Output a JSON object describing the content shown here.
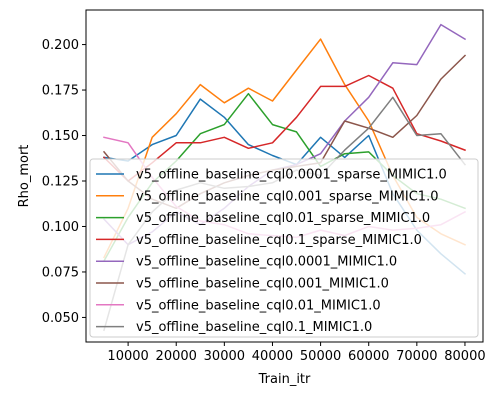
{
  "chart_data": {
    "type": "line",
    "title": "",
    "xlabel": "Train_itr",
    "ylabel": "Rho_mort",
    "xlim": [
      1250,
      83750
    ],
    "ylim": [
      0.0365,
      0.219
    ],
    "xticks": [
      10000,
      20000,
      30000,
      40000,
      50000,
      60000,
      70000,
      80000
    ],
    "xtick_labels": [
      "10000",
      "20000",
      "30000",
      "40000",
      "50000",
      "60000",
      "70000",
      "80000"
    ],
    "yticks": [
      0.05,
      0.075,
      0.1,
      0.125,
      0.15,
      0.175,
      0.2
    ],
    "ytick_labels": [
      "0.050",
      "0.075",
      "0.100",
      "0.125",
      "0.150",
      "0.175",
      "0.200"
    ],
    "grid": false,
    "legend_position": "lower-right",
    "x": [
      5000,
      10000,
      15000,
      20000,
      25000,
      30000,
      35000,
      40000,
      45000,
      50000,
      55000,
      60000,
      65000,
      70000,
      75000,
      80000
    ],
    "series": [
      {
        "name": "v5_offline_baseline_cql0.0001_sparse_MIMIC1.0",
        "color": "#1f77b4",
        "values": [
          0.138,
          0.136,
          0.145,
          0.15,
          0.17,
          0.16,
          0.145,
          0.139,
          0.134,
          0.149,
          0.138,
          0.15,
          0.118,
          0.098,
          0.085,
          0.074
        ]
      },
      {
        "name": "v5_offline_baseline_cql0.001_sparse_MIMIC1.0",
        "color": "#ff7f0e",
        "values": [
          0.083,
          0.11,
          0.149,
          0.162,
          0.178,
          0.168,
          0.176,
          0.169,
          0.186,
          0.203,
          0.178,
          0.158,
          0.128,
          0.105,
          0.096,
          0.09
        ]
      },
      {
        "name": "v5_offline_baseline_cql0.01_sparse_MIMIC1.0",
        "color": "#2ca02c",
        "values": [
          0.081,
          0.105,
          0.124,
          0.136,
          0.151,
          0.156,
          0.173,
          0.156,
          0.152,
          0.133,
          0.14,
          0.141,
          0.128,
          0.118,
          0.115,
          0.11
        ]
      },
      {
        "name": "v5_offline_baseline_cql0.1_sparse_MIMIC1.0",
        "color": "#d62728",
        "values": [
          0.138,
          0.125,
          0.135,
          0.146,
          0.146,
          0.149,
          0.143,
          0.146,
          0.16,
          0.177,
          0.177,
          0.183,
          0.176,
          0.151,
          0.147,
          0.142
        ]
      },
      {
        "name": "v5_offline_baseline_cql0.0001_MIMIC1.0",
        "color": "#9467bd",
        "values": [
          0.104,
          0.09,
          0.097,
          0.108,
          0.101,
          0.11,
          0.122,
          0.131,
          0.134,
          0.14,
          0.158,
          0.171,
          0.19,
          0.189,
          0.211,
          0.203
        ]
      },
      {
        "name": "v5_offline_baseline_cql0.001_MIMIC1.0",
        "color": "#8c564b",
        "values": [
          0.141,
          0.125,
          0.115,
          0.11,
          0.118,
          0.124,
          0.128,
          0.131,
          0.133,
          0.135,
          0.158,
          0.154,
          0.149,
          0.161,
          0.181,
          0.194
        ]
      },
      {
        "name": "v5_offline_baseline_cql0.01_MIMIC1.0",
        "color": "#e377c2",
        "values": [
          0.149,
          0.146,
          0.127,
          0.111,
          0.103,
          0.101,
          0.096,
          0.095,
          0.094,
          0.098,
          0.095,
          0.1,
          0.098,
          0.099,
          0.101,
          0.108
        ]
      },
      {
        "name": "v5_offline_baseline_cql0.1_MIMIC1.0",
        "color": "#7f7f7f",
        "values": [
          0.043,
          0.09,
          0.108,
          0.12,
          0.124,
          0.121,
          0.122,
          0.124,
          0.131,
          0.128,
          0.142,
          0.154,
          0.171,
          0.15,
          0.151,
          0.134
        ]
      }
    ]
  }
}
